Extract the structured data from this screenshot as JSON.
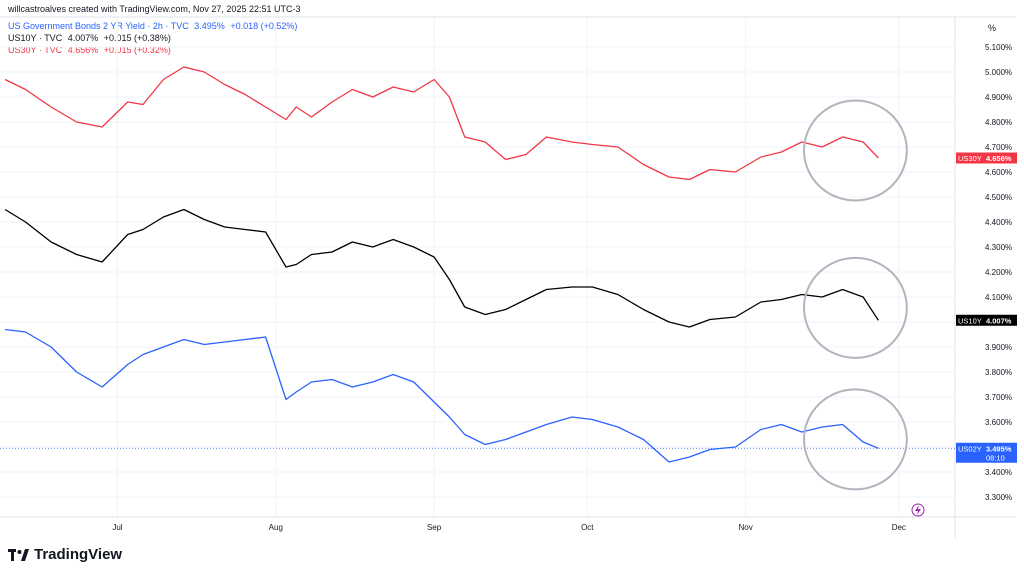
{
  "header": {
    "author": "willcastroalves created with TradingView.com, Nov 27, 2025 22:51 UTC-3",
    "line1": {
      "name": "US Government Bonds 2 YR Yield · 2h · TVC",
      "last": "3.495%",
      "change": "+0.018 (+0.52%)"
    },
    "line2": {
      "name": "US10Y · TVC",
      "last": "4.007%",
      "change": "+0.015 (+0.38%)"
    },
    "line3": {
      "name": "US30Y · TVC",
      "last": "4.656%",
      "change": "+0.015 (+0.32%)"
    }
  },
  "brand": {
    "name": "TradingView"
  },
  "colors": {
    "us30y": "#f23645",
    "us10y": "#000000",
    "us02y": "#2962ff",
    "annotation": "#b2b5be",
    "axis_text": "#131722"
  },
  "chart_data": {
    "type": "line",
    "y_unit": "%",
    "ylim": [
      3.22,
      5.22
    ],
    "y_ticks": [
      "5.100%",
      "5.000%",
      "4.900%",
      "4.800%",
      "4.700%",
      "4.600%",
      "4.500%",
      "4.400%",
      "4.300%",
      "4.200%",
      "4.100%",
      "4.000%",
      "3.900%",
      "3.800%",
      "3.700%",
      "3.600%",
      "3.500%",
      "3.400%",
      "3.300%"
    ],
    "x_ticks": [
      "Jul",
      "Aug",
      "Sep",
      "Oct",
      "Nov",
      "Dec"
    ],
    "x_tick_dates": [
      "2025-07-01",
      "2025-08-01",
      "2025-09-01",
      "2025-10-01",
      "2025-11-01",
      "2025-12-01"
    ],
    "x_range": [
      "2025-06-08",
      "2025-12-12"
    ],
    "grid": true,
    "current_time_label": "08:10",
    "series": [
      {
        "name": "US30Y",
        "last_label": "4.656%",
        "color": "#f23645",
        "dates": [
          "2025-06-09",
          "2025-06-13",
          "2025-06-18",
          "2025-06-23",
          "2025-06-28",
          "2025-07-03",
          "2025-07-06",
          "2025-07-10",
          "2025-07-14",
          "2025-07-18",
          "2025-07-22",
          "2025-07-26",
          "2025-07-30",
          "2025-08-03",
          "2025-08-05",
          "2025-08-08",
          "2025-08-12",
          "2025-08-16",
          "2025-08-20",
          "2025-08-24",
          "2025-08-28",
          "2025-09-01",
          "2025-09-04",
          "2025-09-07",
          "2025-09-11",
          "2025-09-15",
          "2025-09-19",
          "2025-09-23",
          "2025-09-28",
          "2025-10-02",
          "2025-10-07",
          "2025-10-12",
          "2025-10-17",
          "2025-10-21",
          "2025-10-25",
          "2025-10-30",
          "2025-11-04",
          "2025-11-08",
          "2025-11-12",
          "2025-11-16",
          "2025-11-20",
          "2025-11-24",
          "2025-11-27"
        ],
        "values": [
          4.97,
          4.93,
          4.86,
          4.8,
          4.78,
          4.88,
          4.87,
          4.97,
          5.02,
          5.0,
          4.95,
          4.91,
          4.86,
          4.81,
          4.86,
          4.82,
          4.88,
          4.93,
          4.9,
          4.94,
          4.92,
          4.97,
          4.9,
          4.74,
          4.72,
          4.65,
          4.67,
          4.74,
          4.72,
          4.71,
          4.7,
          4.63,
          4.58,
          4.57,
          4.61,
          4.6,
          4.66,
          4.68,
          4.72,
          4.7,
          4.74,
          4.72,
          4.656
        ]
      },
      {
        "name": "US10Y",
        "last_label": "4.007%",
        "color": "#000000",
        "dates": [
          "2025-06-09",
          "2025-06-13",
          "2025-06-18",
          "2025-06-23",
          "2025-06-28",
          "2025-07-03",
          "2025-07-06",
          "2025-07-10",
          "2025-07-14",
          "2025-07-18",
          "2025-07-22",
          "2025-07-26",
          "2025-07-30",
          "2025-08-03",
          "2025-08-05",
          "2025-08-08",
          "2025-08-12",
          "2025-08-16",
          "2025-08-20",
          "2025-08-24",
          "2025-08-28",
          "2025-09-01",
          "2025-09-04",
          "2025-09-07",
          "2025-09-11",
          "2025-09-15",
          "2025-09-19",
          "2025-09-23",
          "2025-09-28",
          "2025-10-02",
          "2025-10-07",
          "2025-10-12",
          "2025-10-17",
          "2025-10-21",
          "2025-10-25",
          "2025-10-30",
          "2025-11-04",
          "2025-11-08",
          "2025-11-12",
          "2025-11-16",
          "2025-11-20",
          "2025-11-24",
          "2025-11-27"
        ],
        "values": [
          4.45,
          4.4,
          4.32,
          4.27,
          4.24,
          4.35,
          4.37,
          4.42,
          4.45,
          4.41,
          4.38,
          4.37,
          4.36,
          4.22,
          4.23,
          4.27,
          4.28,
          4.32,
          4.3,
          4.33,
          4.3,
          4.26,
          4.17,
          4.06,
          4.03,
          4.05,
          4.09,
          4.13,
          4.14,
          4.14,
          4.11,
          4.05,
          4.0,
          3.98,
          4.01,
          4.02,
          4.08,
          4.09,
          4.11,
          4.1,
          4.13,
          4.1,
          4.007
        ]
      },
      {
        "name": "US02Y",
        "last_label": "3.495%",
        "color": "#2962ff",
        "dates": [
          "2025-06-09",
          "2025-06-13",
          "2025-06-18",
          "2025-06-23",
          "2025-06-28",
          "2025-07-03",
          "2025-07-06",
          "2025-07-10",
          "2025-07-14",
          "2025-07-18",
          "2025-07-22",
          "2025-07-26",
          "2025-07-30",
          "2025-08-03",
          "2025-08-05",
          "2025-08-08",
          "2025-08-12",
          "2025-08-16",
          "2025-08-20",
          "2025-08-24",
          "2025-08-28",
          "2025-09-01",
          "2025-09-04",
          "2025-09-07",
          "2025-09-11",
          "2025-09-15",
          "2025-09-19",
          "2025-09-23",
          "2025-09-28",
          "2025-10-02",
          "2025-10-07",
          "2025-10-12",
          "2025-10-17",
          "2025-10-21",
          "2025-10-25",
          "2025-10-30",
          "2025-11-04",
          "2025-11-08",
          "2025-11-12",
          "2025-11-16",
          "2025-11-20",
          "2025-11-24",
          "2025-11-27"
        ],
        "values": [
          3.97,
          3.96,
          3.9,
          3.8,
          3.74,
          3.83,
          3.87,
          3.9,
          3.93,
          3.91,
          3.92,
          3.93,
          3.94,
          3.69,
          3.72,
          3.76,
          3.77,
          3.74,
          3.76,
          3.79,
          3.76,
          3.68,
          3.62,
          3.55,
          3.51,
          3.53,
          3.56,
          3.59,
          3.62,
          3.61,
          3.58,
          3.53,
          3.44,
          3.46,
          3.49,
          3.5,
          3.57,
          3.59,
          3.56,
          3.58,
          3.59,
          3.52,
          3.495
        ]
      }
    ],
    "annotations": [
      {
        "type": "ellipse",
        "series": "US30Y",
        "start": "2025-11-14",
        "end": "2025-12-01"
      },
      {
        "type": "ellipse",
        "series": "US10Y",
        "start": "2025-11-14",
        "end": "2025-12-01"
      },
      {
        "type": "ellipse",
        "series": "US02Y",
        "start": "2025-11-14",
        "end": "2025-12-01"
      }
    ]
  }
}
